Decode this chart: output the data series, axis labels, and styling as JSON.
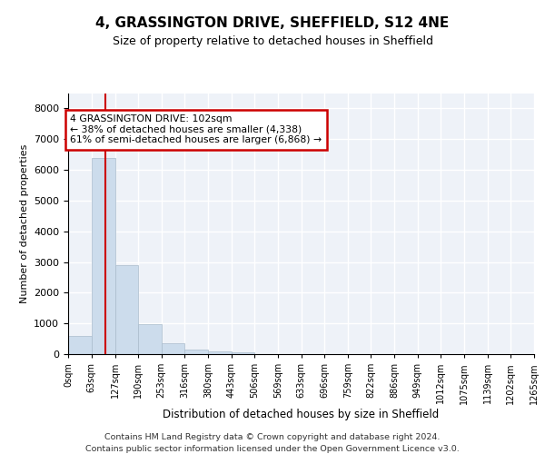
{
  "title": "4, GRASSINGTON DRIVE, SHEFFIELD, S12 4NE",
  "subtitle": "Size of property relative to detached houses in Sheffield",
  "xlabel": "Distribution of detached houses by size in Sheffield",
  "ylabel": "Number of detached properties",
  "bar_color": "#ccdcec",
  "bar_edgecolor": "#aabccc",
  "background_color": "#eef2f8",
  "grid_color": "#ffffff",
  "property_size": 102,
  "annotation_text": "4 GRASSINGTON DRIVE: 102sqm\n← 38% of detached houses are smaller (4,338)\n61% of semi-detached houses are larger (6,868) →",
  "annotation_box_color": "#cc0000",
  "red_line_color": "#cc0000",
  "footer_line1": "Contains HM Land Registry data © Crown copyright and database right 2024.",
  "footer_line2": "Contains public sector information licensed under the Open Government Licence v3.0.",
  "bin_edges": [
    0,
    63,
    127,
    190,
    253,
    316,
    380,
    443,
    506,
    569,
    633,
    696,
    759,
    822,
    886,
    949,
    1012,
    1075,
    1139,
    1202,
    1265
  ],
  "bin_labels": [
    "0sqm",
    "63sqm",
    "127sqm",
    "190sqm",
    "253sqm",
    "316sqm",
    "380sqm",
    "443sqm",
    "506sqm",
    "569sqm",
    "633sqm",
    "696sqm",
    "759sqm",
    "822sqm",
    "886sqm",
    "949sqm",
    "1012sqm",
    "1075sqm",
    "1139sqm",
    "1202sqm",
    "1265sqm"
  ],
  "counts": [
    580,
    6400,
    2900,
    970,
    360,
    155,
    90,
    55,
    0,
    0,
    0,
    0,
    0,
    0,
    0,
    0,
    0,
    0,
    0,
    0
  ],
  "ylim": [
    0,
    8500
  ],
  "yticks": [
    0,
    1000,
    2000,
    3000,
    4000,
    5000,
    6000,
    7000,
    8000
  ]
}
